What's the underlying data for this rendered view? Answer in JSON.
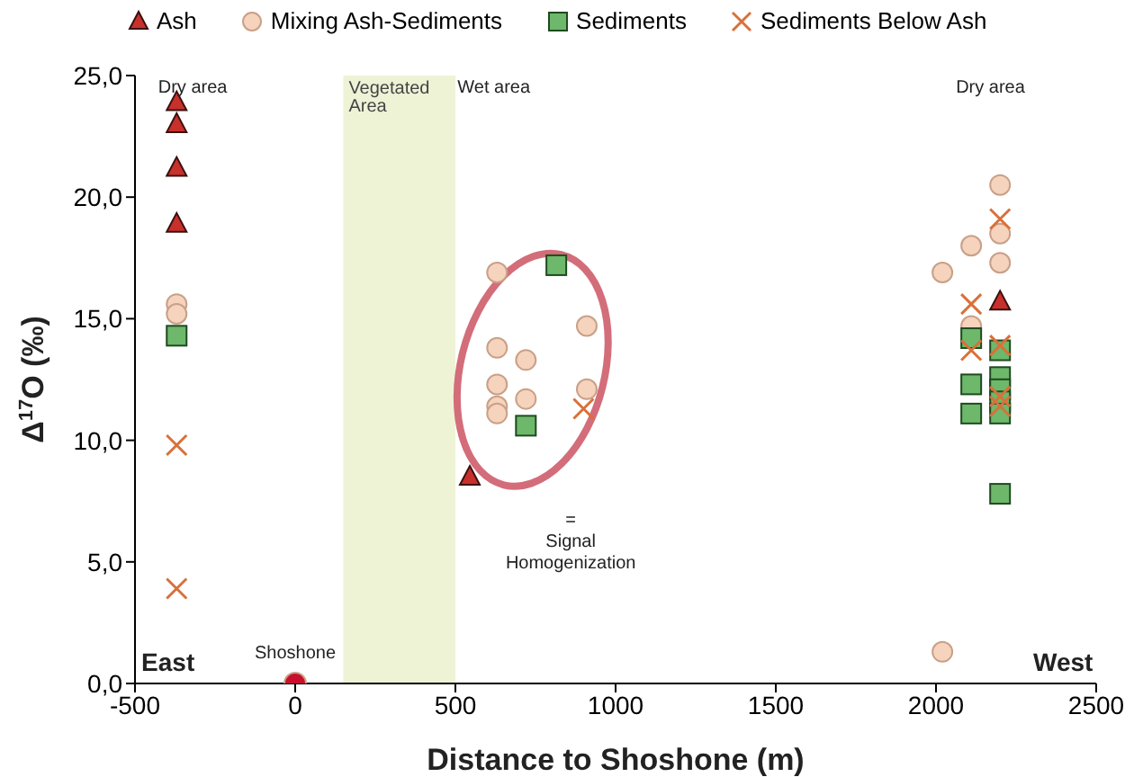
{
  "chart_data": {
    "type": "scatter",
    "xlabel": "Distance to Shoshone (m)",
    "ylabel": "Δ$^{17}$O (‰)",
    "xlim": [
      -500,
      2500
    ],
    "xticks": [
      -500,
      0,
      500,
      1000,
      1500,
      2000,
      2500
    ],
    "ylim": [
      0,
      25
    ],
    "yticks": [
      {
        "value": 0,
        "label": "0,0"
      },
      {
        "value": 5,
        "label": "5,0"
      },
      {
        "value": 10,
        "label": "10,0"
      },
      {
        "value": 15,
        "label": "15,0"
      },
      {
        "value": 20,
        "label": "20,0"
      },
      {
        "value": 25,
        "label": "25,0"
      }
    ],
    "grid": false,
    "legend": "top",
    "series": [
      {
        "name": "Ash",
        "color": "#c8302b",
        "marker": "triangle",
        "x": [
          -370,
          -370,
          -370,
          -370,
          545,
          2200
        ],
        "values": [
          23.9,
          23.0,
          21.2,
          18.9,
          8.5,
          15.7
        ]
      },
      {
        "name": "Mixing Ash-Sediments",
        "color": "#f5d3bd",
        "marker": "circle",
        "x": [
          -370,
          -370,
          630,
          630,
          630,
          630,
          630,
          720,
          720,
          910,
          910,
          2020,
          2020,
          2110,
          2110,
          2200,
          2200,
          2200
        ],
        "values": [
          15.6,
          15.2,
          16.9,
          13.8,
          12.3,
          11.4,
          11.1,
          13.3,
          11.7,
          14.7,
          12.1,
          16.9,
          1.3,
          18.0,
          14.7,
          20.5,
          18.5,
          17.3
        ]
      },
      {
        "name": "Sediments",
        "color": "#6db86b",
        "marker": "square",
        "x": [
          -370,
          815,
          720,
          2110,
          2110,
          2110,
          2200,
          2200,
          2200,
          2200,
          2200,
          2200
        ],
        "values": [
          14.3,
          17.2,
          10.6,
          14.2,
          12.3,
          11.1,
          13.7,
          12.6,
          12.1,
          11.6,
          11.1,
          7.8
        ]
      },
      {
        "name": "Sediments Below Ash",
        "color": "#d9703a",
        "marker": "cross",
        "x": [
          -370,
          -370,
          900,
          2110,
          2110,
          2200,
          2200,
          2200,
          2200
        ],
        "values": [
          9.8,
          3.9,
          11.3,
          15.6,
          13.7,
          19.1,
          13.9,
          11.8,
          11.4
        ]
      },
      {
        "color": "#c8102e",
        "marker": "circle",
        "x": [
          0
        ],
        "values": [
          0
        ]
      }
    ],
    "bands": [
      {
        "axis": "x",
        "from": 150,
        "to": 500,
        "label": "Vegetated Area",
        "color": "#eef3d6"
      }
    ],
    "annotations": [
      "Dry area",
      "Wet area",
      "Dry area",
      "East",
      "West",
      {
        "text": "Shoshone",
        "x": 0,
        "y": 0
      },
      "= Signal Homogenization"
    ]
  }
}
